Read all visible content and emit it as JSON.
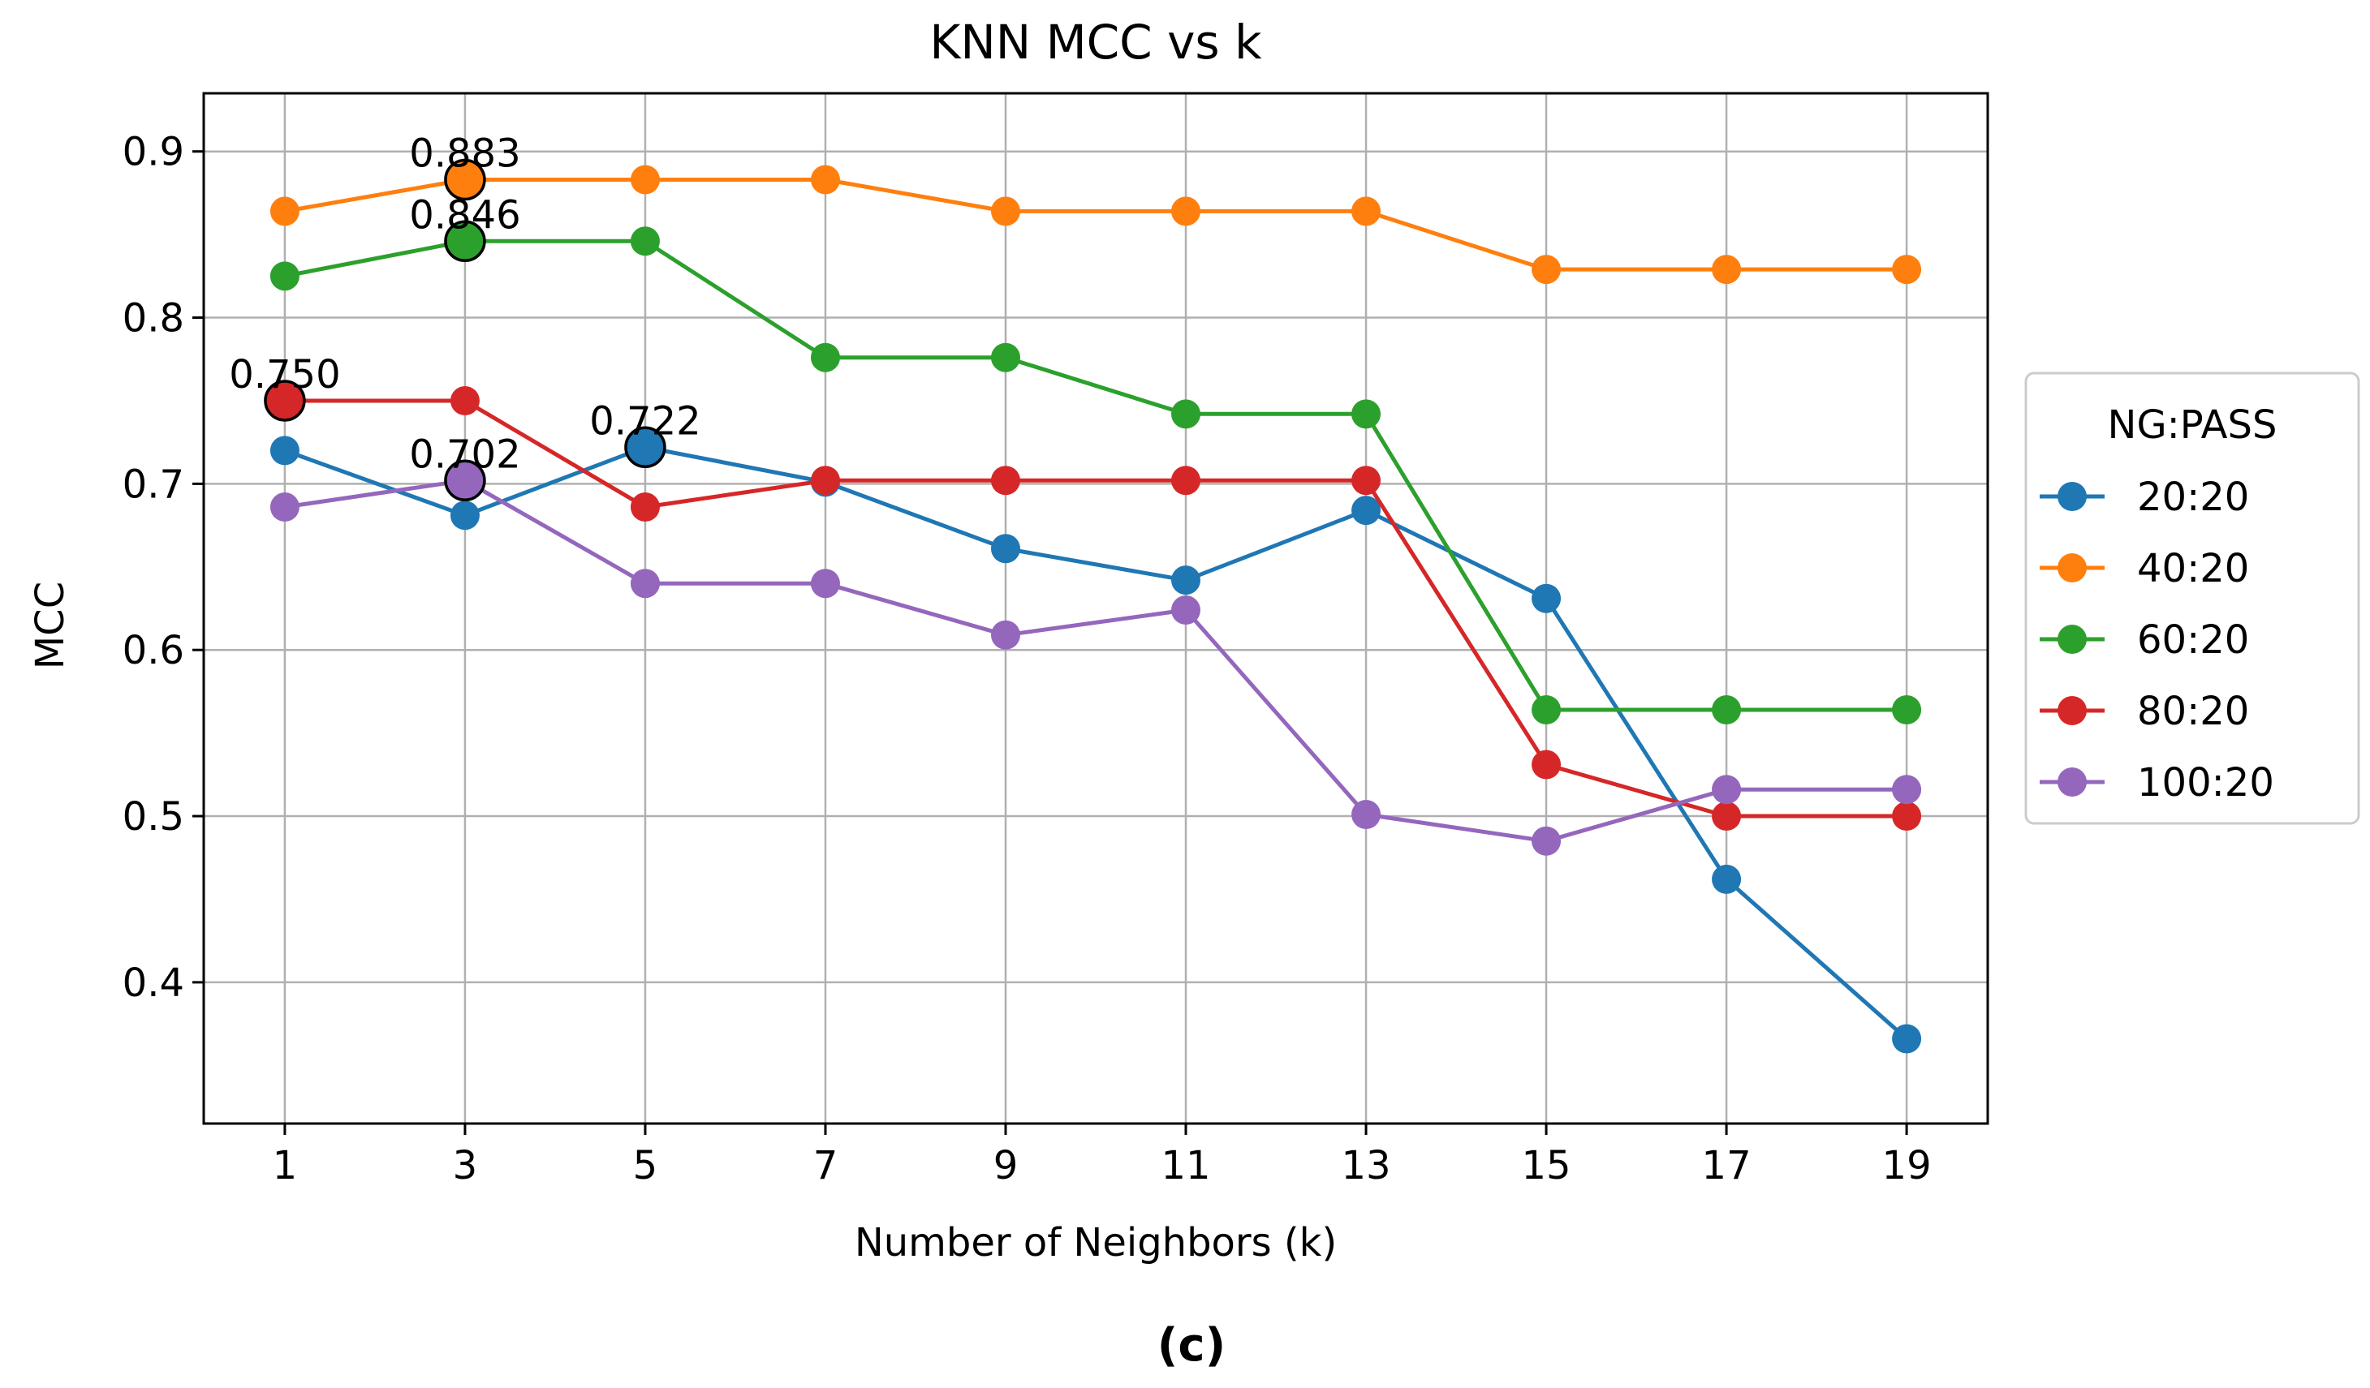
{
  "chart_data": {
    "type": "line",
    "title": "KNN MCC vs k",
    "xlabel": "Number of Neighbors (k)",
    "ylabel": "MCC",
    "x": [
      1,
      3,
      5,
      7,
      9,
      11,
      13,
      15,
      17,
      19
    ],
    "xticks": [
      "1",
      "3",
      "5",
      "7",
      "9",
      "11",
      "13",
      "15",
      "17",
      "19"
    ],
    "yticks": [
      "0.4",
      "0.5",
      "0.6",
      "0.7",
      "0.8",
      "0.9"
    ],
    "xlim": [
      0.1,
      19.9
    ],
    "ylim": [
      0.315,
      0.935
    ],
    "grid": true,
    "legend_title": "NG:PASS",
    "legend_position": "outside-right",
    "series": [
      {
        "name": "20:20",
        "color": "#1f77b4",
        "values": [
          0.72,
          0.681,
          0.722,
          0.701,
          0.661,
          0.642,
          0.684,
          0.631,
          0.462,
          0.366
        ],
        "best_index": 2,
        "best_label": "0.722"
      },
      {
        "name": "40:20",
        "color": "#ff7f0e",
        "values": [
          0.864,
          0.883,
          0.883,
          0.883,
          0.864,
          0.864,
          0.864,
          0.829,
          0.829,
          0.829
        ],
        "best_index": 1,
        "best_label": "0.883"
      },
      {
        "name": "60:20",
        "color": "#2ca02c",
        "values": [
          0.825,
          0.846,
          0.846,
          0.776,
          0.776,
          0.742,
          0.742,
          0.564,
          0.564,
          0.564
        ],
        "best_index": 1,
        "best_label": "0.846"
      },
      {
        "name": "80:20",
        "color": "#d62728",
        "values": [
          0.75,
          0.75,
          0.686,
          0.702,
          0.702,
          0.702,
          0.702,
          0.531,
          0.5,
          0.5
        ],
        "best_index": 0,
        "best_label": "0.750"
      },
      {
        "name": "100:20",
        "color": "#9467bd",
        "values": [
          0.686,
          0.702,
          0.64,
          0.64,
          0.609,
          0.624,
          0.501,
          0.485,
          0.516,
          0.516
        ],
        "best_index": 1,
        "best_label": "0.702"
      }
    ]
  },
  "caption": "(c)"
}
